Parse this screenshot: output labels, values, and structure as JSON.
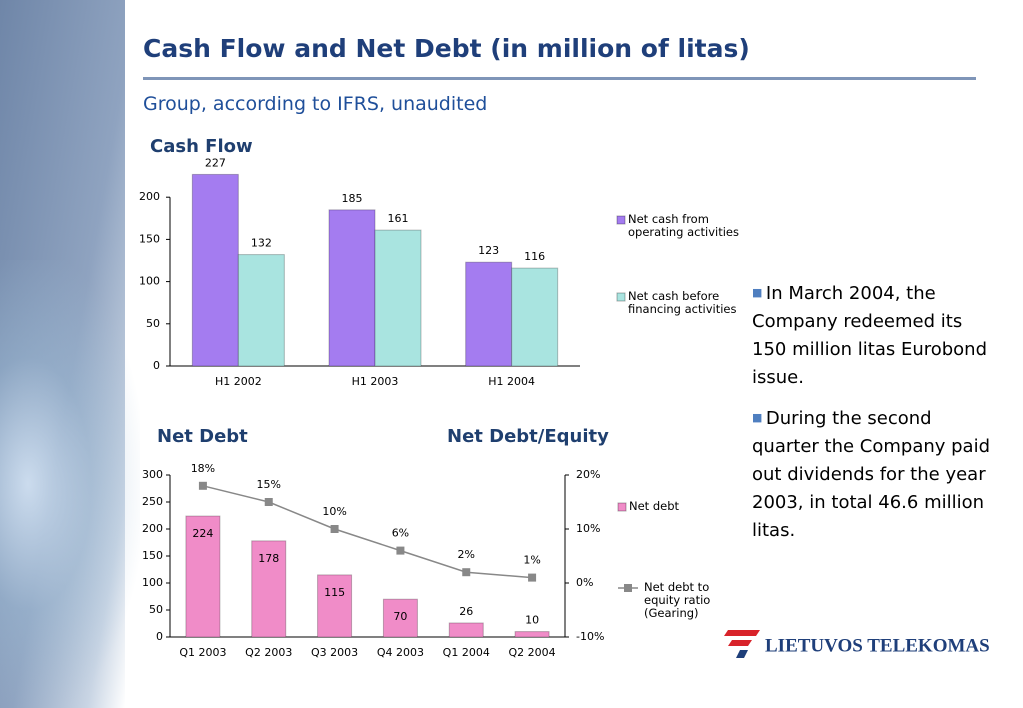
{
  "title": "Cash Flow and Net Debt (in million of litas)",
  "subtitle": "Group, according to IFRS, unaudited",
  "bullets": [
    "In March 2004, the Company redeemed its 150 million litas Eurobond issue.",
    "During the second quarter the Company paid out dividends for the year 2003, in total 46.6 million litas."
  ],
  "logo": "LIETUVOS TELEKOMAS",
  "chart_data": [
    {
      "type": "bar",
      "title": "Cash Flow",
      "categories": [
        "H1 2002",
        "H1 2003",
        "H1 2004"
      ],
      "series": [
        {
          "name": "Net cash from operating activities",
          "color": "#a47cf0",
          "values": [
            227,
            185,
            123
          ]
        },
        {
          "name": "Net cash before financing activities",
          "color": "#a9e4e0",
          "values": [
            132,
            161,
            116
          ]
        }
      ],
      "ylim": [
        0,
        250
      ],
      "yticks": [
        0,
        50,
        100,
        150,
        200
      ],
      "legend": "right"
    },
    {
      "type": "bar",
      "title": "Net Debt",
      "y2label": "Net Debt/Equity",
      "categories": [
        "Q1 2003",
        "Q2 2003",
        "Q3 2003",
        "Q4 2003",
        "Q1 2004",
        "Q2 2004"
      ],
      "series": [
        {
          "name": "Net debt",
          "color": "#f08cc8",
          "values": [
            224,
            178,
            115,
            70,
            26,
            10
          ]
        },
        {
          "name": "Net debt to equity ratio (Gearing)",
          "color": "#888888",
          "type": "line",
          "axis": "y2",
          "values": [
            18,
            15,
            10,
            6,
            2,
            1
          ],
          "value_labels": [
            "18%",
            "15%",
            "10%",
            "6%",
            "2%",
            "1%"
          ]
        }
      ],
      "ylim": [
        0,
        300
      ],
      "yticks": [
        0,
        50,
        100,
        150,
        200,
        250,
        300
      ],
      "y2lim": [
        -10,
        20
      ],
      "y2ticks": [
        {
          "value": -10,
          "label": "-10%"
        },
        {
          "value": 0,
          "label": "0%"
        },
        {
          "value": 10,
          "label": "10%"
        },
        {
          "value": 20,
          "label": "20%"
        }
      ],
      "legend": "right"
    }
  ]
}
